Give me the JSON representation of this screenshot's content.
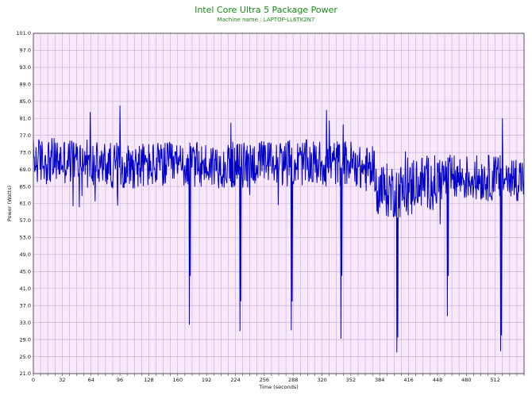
{
  "chart_data": {
    "type": "line",
    "title": "Intel Core Ultra 5 Package Power",
    "subtitle": "Machine name : LAPTOP-LL6TK2N7",
    "xlabel": "Time (seconds)",
    "ylabel": "Power (Watts)",
    "xlim": [
      0,
      544
    ],
    "ylim": [
      21.0,
      101.0
    ],
    "x_ticks": [
      0,
      32,
      64,
      96,
      128,
      160,
      192,
      224,
      256,
      288,
      320,
      352,
      384,
      416,
      448,
      480,
      512
    ],
    "y_ticks": [
      "21.0",
      "25.0",
      "29.0",
      "33.0",
      "37.0",
      "41.0",
      "45.0",
      "49.0",
      "53.0",
      "57.0",
      "61.0",
      "65.0",
      "69.0",
      "73.0",
      "77.0",
      "81.0",
      "85.0",
      "89.0",
      "93.0",
      "97.0",
      "101.0"
    ],
    "grid": true,
    "background_color": "#f7e8fb",
    "grid_color": "#c9a8d6",
    "line_color": "#0000c8",
    "series": [
      {
        "base_segments": [
          {
            "x0": 0,
            "x1": 60,
            "mean": 71
          },
          {
            "x0": 60,
            "x1": 120,
            "mean": 70
          },
          {
            "x0": 120,
            "x1": 240,
            "mean": 70
          },
          {
            "x0": 240,
            "x1": 360,
            "mean": 70.5
          },
          {
            "x0": 360,
            "x1": 380,
            "mean": 69
          },
          {
            "x0": 380,
            "x1": 420,
            "mean": 64
          },
          {
            "x0": 420,
            "x1": 450,
            "mean": 66
          },
          {
            "x0": 450,
            "x1": 544,
            "mean": 67
          }
        ],
        "dips": [
          {
            "x": 173,
            "y": 32.5
          },
          {
            "x": 174,
            "y": 44
          },
          {
            "x": 229,
            "y": 31
          },
          {
            "x": 230,
            "y": 38
          },
          {
            "x": 286,
            "y": 31.2
          },
          {
            "x": 287,
            "y": 38
          },
          {
            "x": 341,
            "y": 29.2
          },
          {
            "x": 342,
            "y": 44
          },
          {
            "x": 403,
            "y": 26
          },
          {
            "x": 404,
            "y": 29.5
          },
          {
            "x": 459,
            "y": 34.5
          },
          {
            "x": 460,
            "y": 44
          },
          {
            "x": 518,
            "y": 26.3
          },
          {
            "x": 519,
            "y": 30
          }
        ],
        "peaks": [
          {
            "x": 63,
            "y": 82.5
          },
          {
            "x": 96,
            "y": 84
          },
          {
            "x": 219,
            "y": 80
          },
          {
            "x": 325,
            "y": 83
          },
          {
            "x": 328,
            "y": 80.5
          },
          {
            "x": 520,
            "y": 81
          }
        ]
      }
    ]
  }
}
